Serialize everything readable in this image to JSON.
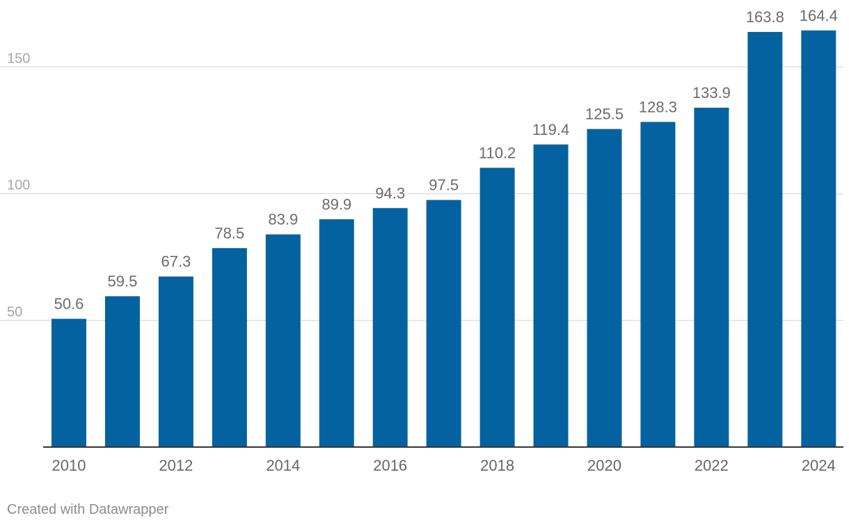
{
  "chart_data": {
    "type": "bar",
    "categories": [
      "2010",
      "2011",
      "2012",
      "2013",
      "2014",
      "2015",
      "2016",
      "2017",
      "2018",
      "2019",
      "2020",
      "2021",
      "2022",
      "2023",
      "2024"
    ],
    "values": [
      50.6,
      59.5,
      67.3,
      78.5,
      83.9,
      89.9,
      94.3,
      97.5,
      110.2,
      119.4,
      125.5,
      128.3,
      133.9,
      163.8,
      164.4
    ],
    "data_labels": [
      "50.6",
      "59.5",
      "67.3",
      "78.5",
      "83.9",
      "89.9",
      "94.3",
      "97.5",
      "110.2",
      "119.4",
      "125.5",
      "128.3",
      "133.9",
      "163.8",
      "164.4"
    ],
    "x_tick_labels": [
      "2010",
      "2012",
      "2014",
      "2016",
      "2018",
      "2020",
      "2022",
      "2024"
    ],
    "y_ticks": [
      50,
      100,
      150
    ],
    "y_tick_labels": [
      "50",
      "100",
      "150"
    ],
    "ylim": [
      0,
      170
    ],
    "grid": true,
    "legend": "none",
    "bar_color": "#0562a0",
    "gridline_color": "#e0e0e0",
    "baseline_color": "#333333"
  },
  "footer": {
    "credit": "Created with Datawrapper"
  }
}
